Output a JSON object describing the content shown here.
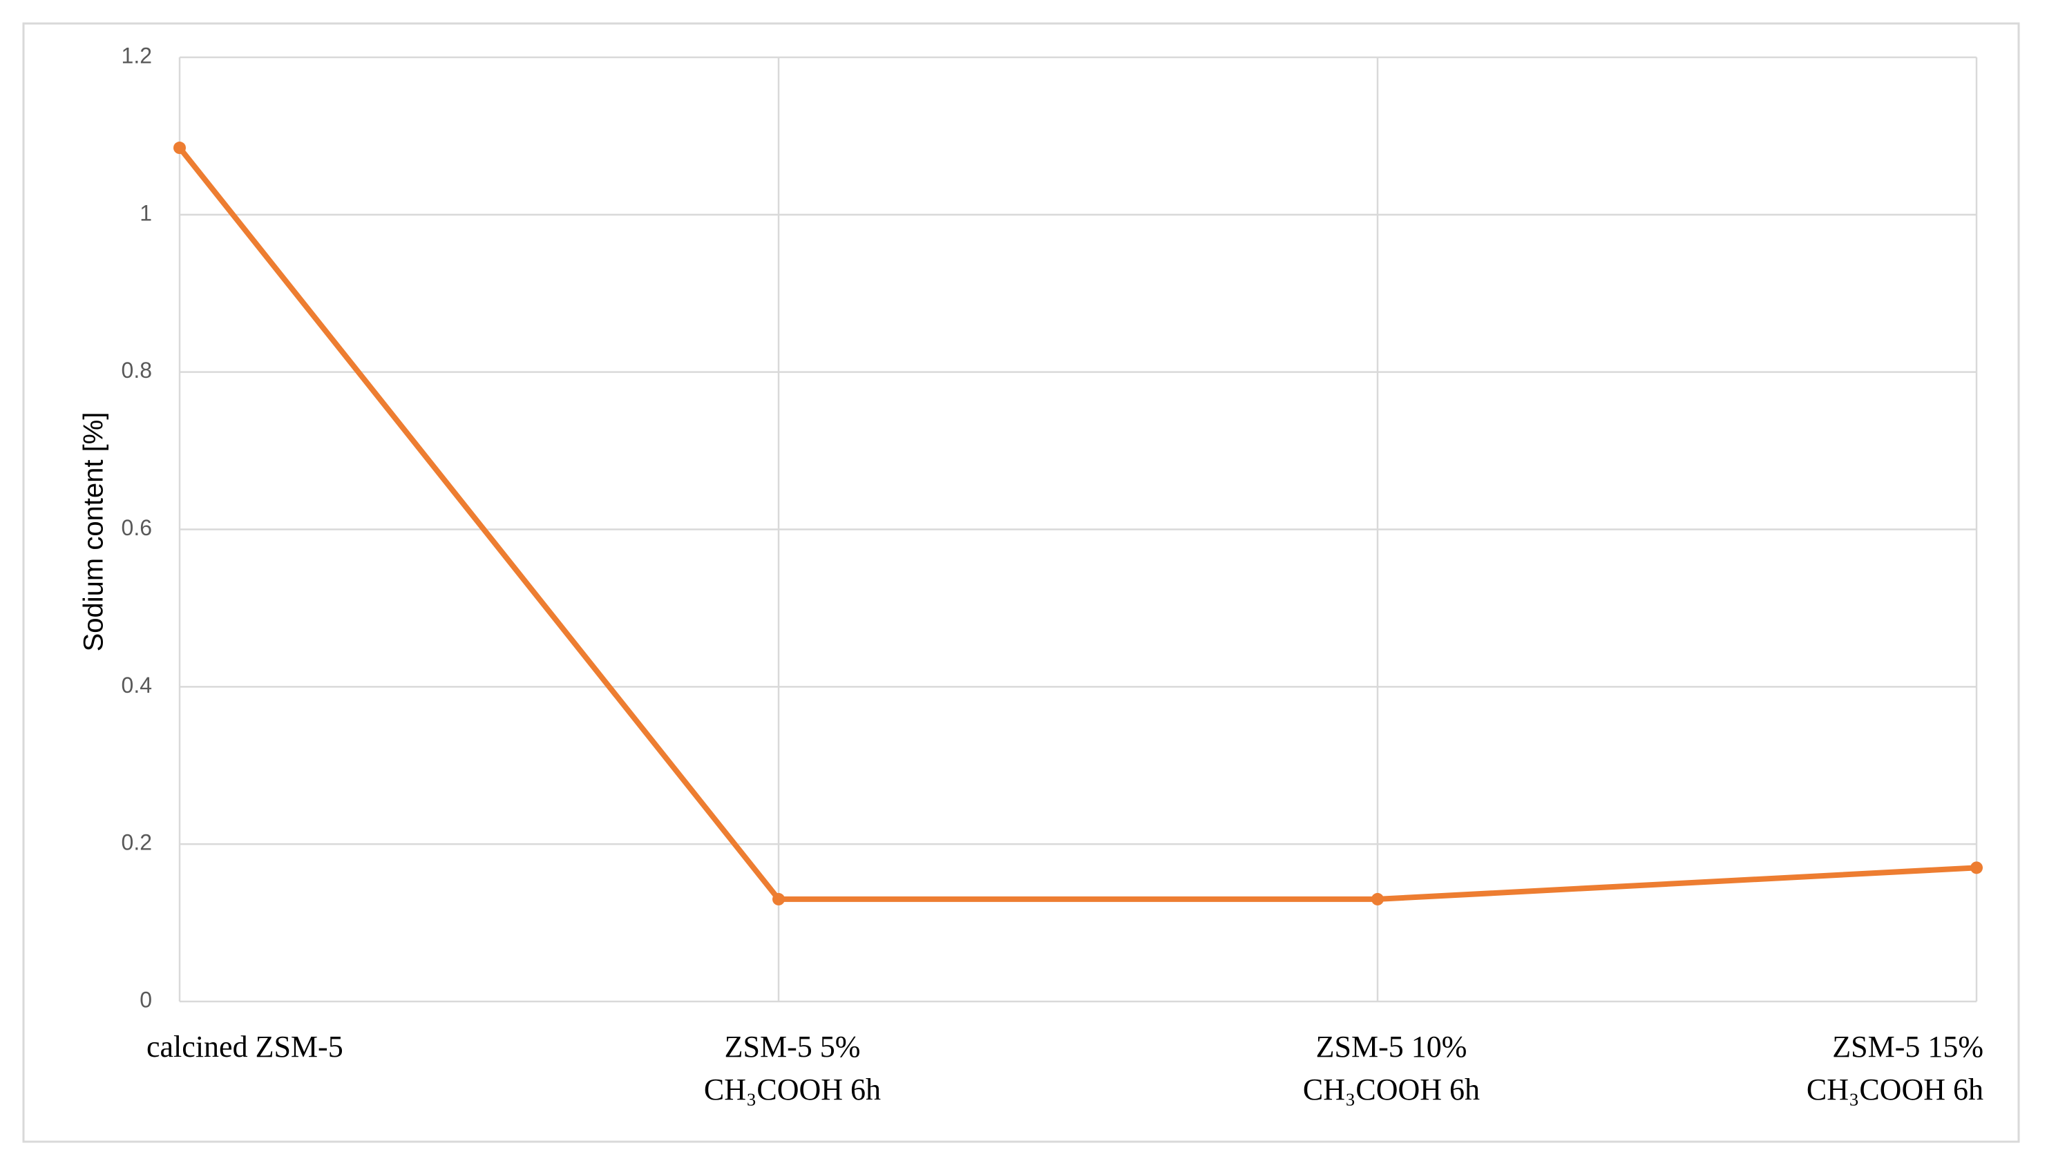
{
  "chart_data": {
    "type": "line",
    "y_label": "Sodium content [%]",
    "categories": [
      "calcined ZSM-5",
      "ZSM-5 5%\nCH₃COOH 6h",
      "ZSM-5 10%\nCH₃COOH 6h",
      "ZSM-5 15%\nCH₃COOH 6h"
    ],
    "series": [
      {
        "name": "Sodium content",
        "color": "#ed7d31",
        "values": [
          1.085,
          0.13,
          0.13,
          0.17
        ]
      }
    ],
    "ylim": [
      0,
      1.2
    ],
    "yticks": [
      0,
      0.2,
      0.4,
      0.6,
      0.8,
      1,
      1.2
    ],
    "grid": true
  }
}
